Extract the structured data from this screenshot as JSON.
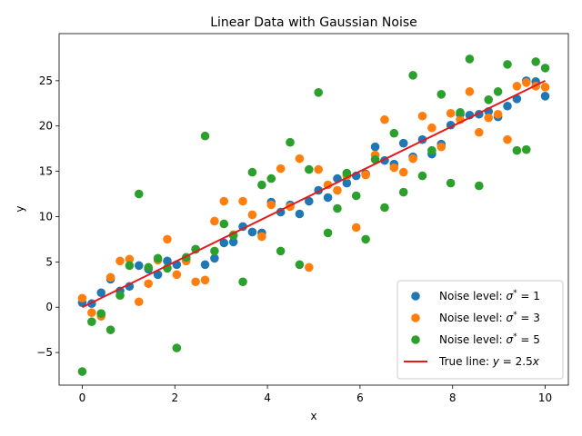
{
  "chart_data": {
    "type": "scatter",
    "title": "Linear Data with Gaussian Noise",
    "xlabel": "x",
    "ylabel": "y",
    "xlim": [
      -0.5,
      10.5
    ],
    "ylim": [
      -8.6,
      30.2
    ],
    "xticks": [
      0,
      2,
      4,
      6,
      8,
      10
    ],
    "yticks": [
      -5,
      0,
      5,
      10,
      15,
      20,
      25
    ],
    "grid": false,
    "legend_position": "bottom-right",
    "x": [
      0.0,
      0.204,
      0.408,
      0.612,
      0.816,
      1.02,
      1.224,
      1.429,
      1.633,
      1.837,
      2.041,
      2.245,
      2.449,
      2.653,
      2.857,
      3.061,
      3.265,
      3.469,
      3.673,
      3.878,
      4.082,
      4.286,
      4.49,
      4.694,
      4.898,
      5.102,
      5.306,
      5.51,
      5.714,
      5.918,
      6.122,
      6.327,
      6.531,
      6.735,
      6.939,
      7.143,
      7.347,
      7.551,
      7.755,
      7.959,
      8.163,
      8.367,
      8.571,
      8.776,
      8.98,
      9.184,
      9.388,
      9.592,
      9.796,
      10.0
    ],
    "series": [
      {
        "name": "Noise level: σ* = 1",
        "color": "#1f77b4",
        "values": [
          0.5,
          0.4,
          1.6,
          3.1,
          1.8,
          2.3,
          4.6,
          4.2,
          3.6,
          5.1,
          4.7,
          5.3,
          6.4,
          4.7,
          5.4,
          7.1,
          7.2,
          8.9,
          8.3,
          8.2,
          11.6,
          10.5,
          11.3,
          10.3,
          11.7,
          12.9,
          12.1,
          14.2,
          13.7,
          14.5,
          14.7,
          17.7,
          16.2,
          15.8,
          18.1,
          16.6,
          18.5,
          16.9,
          18.0,
          20.1,
          21.3,
          21.2,
          21.3,
          21.6,
          21.0,
          22.2,
          23.0,
          25.0,
          24.9,
          23.3
        ]
      },
      {
        "name": "Noise level: σ* = 3",
        "color": "#ff7f0e",
        "values": [
          1.0,
          -0.6,
          -1.0,
          3.3,
          5.1,
          5.3,
          0.6,
          2.6,
          5.2,
          7.5,
          3.6,
          5.1,
          2.8,
          3.0,
          9.5,
          11.7,
          8.0,
          11.7,
          10.2,
          7.8,
          11.3,
          15.3,
          11.1,
          16.4,
          4.4,
          15.2,
          13.5,
          12.9,
          14.5,
          8.8,
          14.6,
          16.8,
          20.7,
          15.4,
          14.9,
          16.4,
          21.1,
          19.8,
          17.7,
          21.4,
          20.7,
          23.8,
          19.3,
          20.9,
          21.3,
          18.5,
          24.4,
          24.8,
          24.4,
          24.3
        ]
      },
      {
        "name": "Noise level: σ* = 5",
        "color": "#2ca02c",
        "values": [
          -7.1,
          -1.6,
          -0.7,
          -2.5,
          1.3,
          4.6,
          12.5,
          4.4,
          5.4,
          4.3,
          -4.5,
          5.5,
          6.4,
          18.9,
          6.2,
          9.2,
          7.9,
          2.8,
          14.9,
          13.5,
          14.2,
          6.2,
          18.2,
          4.7,
          15.2,
          23.7,
          8.2,
          10.9,
          14.8,
          12.3,
          7.5,
          16.3,
          11.0,
          19.2,
          12.7,
          25.6,
          14.5,
          17.3,
          23.5,
          13.7,
          21.5,
          27.4,
          13.4,
          22.9,
          23.8,
          26.8,
          17.3,
          17.4,
          27.1,
          26.4
        ]
      }
    ],
    "line": {
      "name": "True line: y = 2.5x",
      "color": "#e41a1c",
      "x": [
        0,
        10
      ],
      "y": [
        0,
        25
      ]
    },
    "legend_entries": [
      {
        "prefix": "Noise level: ",
        "sigma": "σ",
        "sup": "*",
        "suffix": " = 1"
      },
      {
        "prefix": "Noise level: ",
        "sigma": "σ",
        "sup": "*",
        "suffix": " = 3"
      },
      {
        "prefix": "Noise level: ",
        "sigma": "σ",
        "sup": "*",
        "suffix": " = 5"
      },
      {
        "prefix": "True line: ",
        "eq_y": "y",
        "eq_mid": " = 2.5",
        "eq_x": "x"
      }
    ]
  }
}
